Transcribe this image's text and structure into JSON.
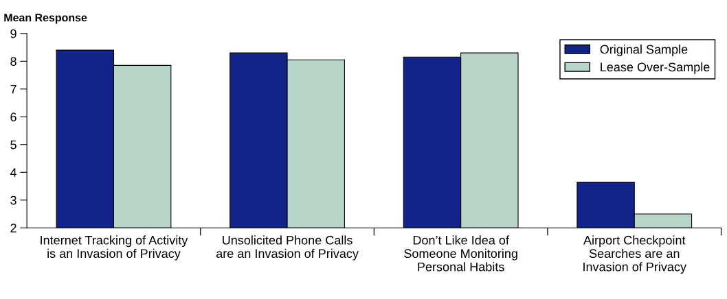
{
  "chart_data": {
    "type": "bar",
    "ylabel": "Mean Response",
    "categories": [
      "Internet Tracking of Activity\nis an Invasion of Privacy",
      "Unsolicited Phone Calls\nare an Invasion of Privacy",
      "Don’t Like Idea of\nSomeone Monitoring\nPersonal Habits",
      "Airport Checkpoint\nSearches are an\nInvasion of Privacy"
    ],
    "series": [
      {
        "name": "Original Sample",
        "color": "#12238a",
        "values": [
          8.4,
          8.3,
          8.15,
          3.65
        ]
      },
      {
        "name": "Lease Over-Sample",
        "color": "#b8d5c9",
        "values": [
          7.85,
          8.05,
          8.3,
          2.5
        ]
      }
    ],
    "ylim": [
      2,
      9
    ],
    "yticks": [
      2,
      3,
      4,
      5,
      6,
      7,
      8,
      9
    ],
    "grid": false,
    "legend": "top right"
  }
}
